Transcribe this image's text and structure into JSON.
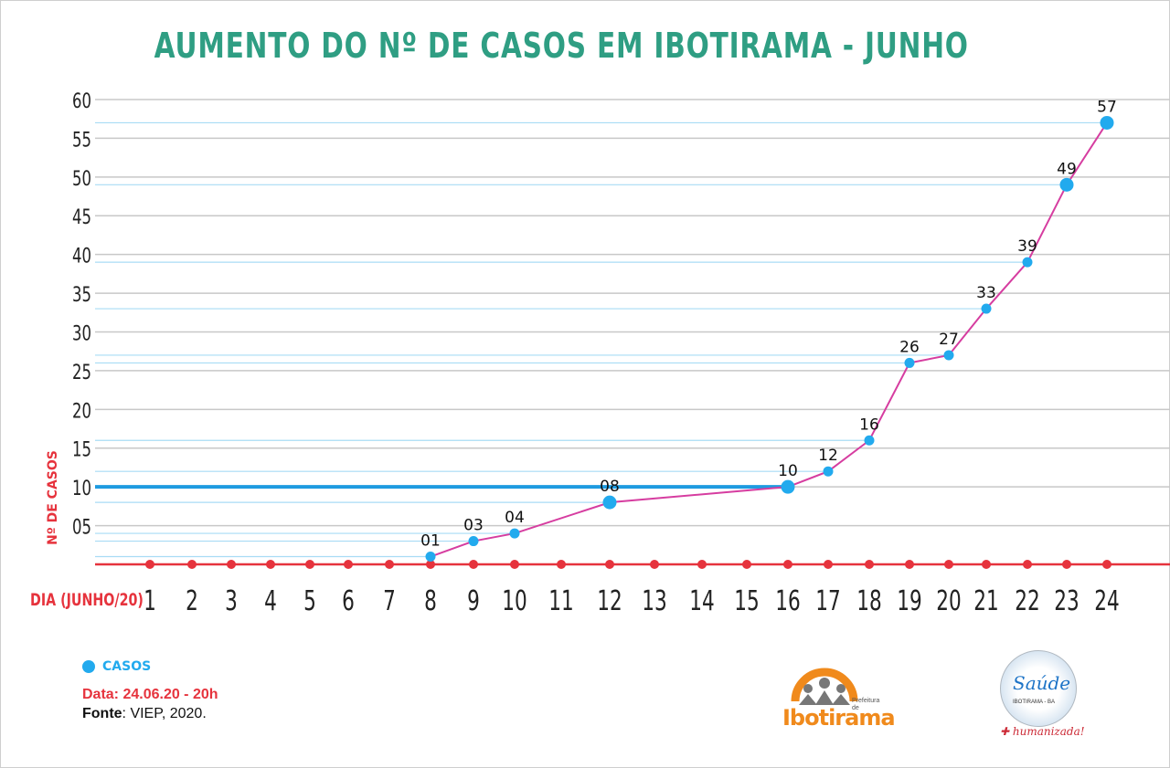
{
  "title": "AUMENTO DO Nº DE CASOS EM IBOTIRAMA - JUNHO",
  "chart_data": {
    "type": "line",
    "title": "AUMENTO DO Nº DE CASOS EM IBOTIRAMA - JUNHO",
    "xlabel": "DIA (JUNHO/20)",
    "ylabel": "Nº DE CASOS",
    "categories": [
      "1",
      "2",
      "3",
      "4",
      "5",
      "6",
      "7",
      "8",
      "9",
      "10",
      "11",
      "12",
      "13",
      "14",
      "15",
      "16",
      "17",
      "18",
      "19",
      "20",
      "21",
      "22",
      "23",
      "24"
    ],
    "yticks": [
      "05",
      "10",
      "15",
      "20",
      "25",
      "30",
      "35",
      "40",
      "45",
      "50",
      "55",
      "60"
    ],
    "ylim": [
      0,
      60
    ],
    "series": [
      {
        "name": "CASOS",
        "color": "#22aaee",
        "line_color": "#d63da0",
        "points": [
          {
            "day": "8",
            "value": 1,
            "label": "01"
          },
          {
            "day": "9",
            "value": 3,
            "label": "03"
          },
          {
            "day": "10",
            "value": 4,
            "label": "04"
          },
          {
            "day": "12",
            "value": 8,
            "label": "08"
          },
          {
            "day": "16",
            "value": 10,
            "label": "10"
          },
          {
            "day": "17",
            "value": 12,
            "label": "12"
          },
          {
            "day": "18",
            "value": 16,
            "label": "16"
          },
          {
            "day": "19",
            "value": 26,
            "label": "26"
          },
          {
            "day": "20",
            "value": 27,
            "label": "27"
          },
          {
            "day": "21",
            "value": 33,
            "label": "33"
          },
          {
            "day": "22",
            "value": 39,
            "label": "39"
          },
          {
            "day": "23",
            "value": 49,
            "label": "49"
          },
          {
            "day": "24",
            "value": 57,
            "label": "57"
          }
        ]
      }
    ],
    "grid": true,
    "day_marker_color": "#e6333d"
  },
  "legend": {
    "label": "CASOS"
  },
  "footer": {
    "date": "Data: 24.06.20 - 20h",
    "source_label": "Fonte",
    "source_text": ": VIEP, 2020."
  },
  "logos": {
    "prefeitura": {
      "brand": "Ibotirama",
      "small": "Prefeitura de"
    },
    "saude": {
      "name": "Saúde",
      "sub": "IBOTIRAMA - BA",
      "tagline": "humanizada!"
    }
  }
}
